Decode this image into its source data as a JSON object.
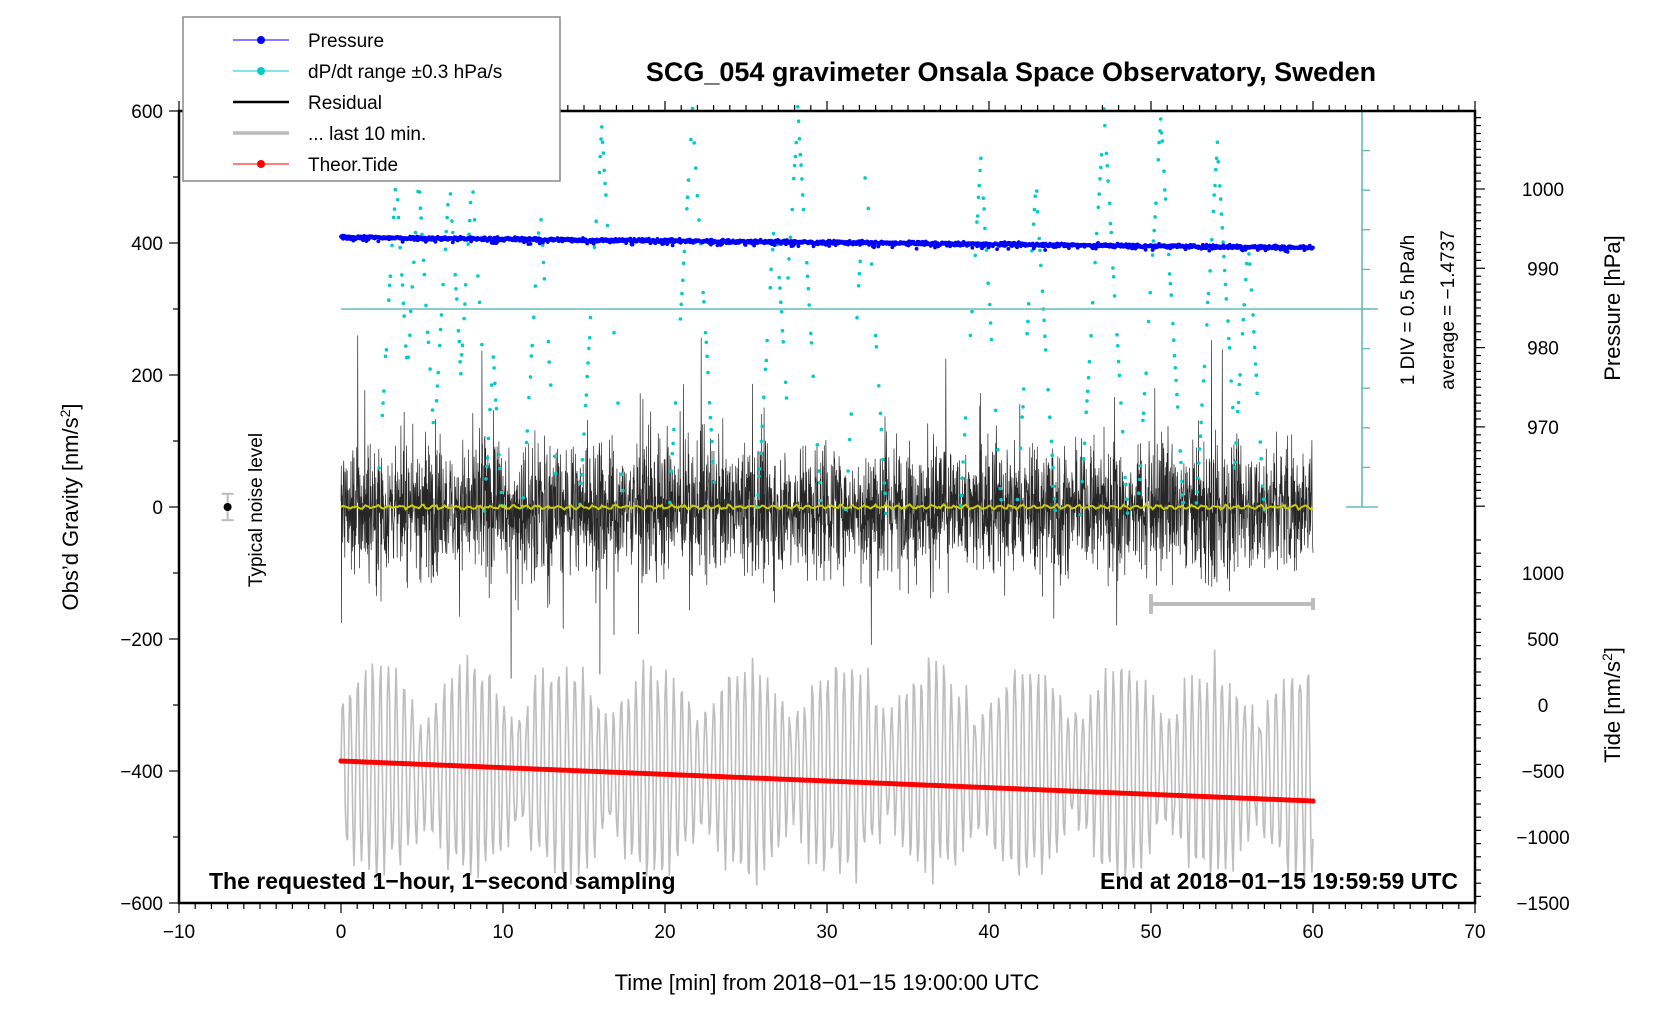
{
  "chart_data": {
    "type": "line",
    "title": "SCG_054 gravimeter Onsala Space Observatory, Sweden",
    "xlabel": "Time [min] from 2018−01−15 19:00:00 UTC",
    "ylabel_left": "Obs’d Gravity [nm/s²]",
    "ylabel_left_main": "Obs’d Gravity [nm/s",
    "ylabel_right_pressure": "Pressure [hPa]",
    "ylabel_right_tide_main": "Tide [nm/s",
    "ylabel_right_tide": "Tide [nm/s²]",
    "xlim": [
      -10,
      70
    ],
    "ylim_left": [
      -600,
      600
    ],
    "pressure_range": [
      960,
      1010
    ],
    "tide_range": [
      -1500,
      1000
    ],
    "x_ticks": [
      -10,
      0,
      10,
      20,
      30,
      40,
      50,
      60,
      70
    ],
    "x_tick_labels": [
      "−10",
      "0",
      "10",
      "20",
      "30",
      "40",
      "50",
      "60",
      "70"
    ],
    "y_left_ticks": [
      600,
      400,
      200,
      0,
      -200,
      -400,
      -600
    ],
    "y_left_tick_labels": [
      "600",
      "400",
      "200",
      "0",
      "−200",
      "−400",
      "−600"
    ],
    "pressure_ticks": [
      1000,
      990,
      980,
      970
    ],
    "pressure_tick_labels": [
      "1000",
      "990",
      "980",
      "970"
    ],
    "tide_ticks": [
      1000,
      500,
      0,
      -500,
      -1000,
      -1500
    ],
    "tide_tick_labels": [
      "1000",
      "500",
      "0",
      "−500",
      "−1000",
      "−1500"
    ],
    "grid": false,
    "legend_position": "top-left",
    "legend": [
      {
        "label": "Pressure",
        "color": "#0000ff",
        "style": "line-dot"
      },
      {
        "label": "dP/dt range ±0.3 hPa/s",
        "color": "#00cccc",
        "style": "line-dot"
      },
      {
        "label": "Residual",
        "color": "#000000",
        "style": "line"
      },
      {
        "label": "... last 10 min.",
        "color": "#bbbbbb",
        "style": "thick-line"
      },
      {
        "label": "Theor.Tide",
        "color": "#ff0000",
        "style": "line-dot"
      }
    ],
    "series": [
      {
        "name": "Pressure",
        "unit": "hPa",
        "x_range": [
          0,
          60
        ],
        "start": 993.9,
        "end": 992.6
      },
      {
        "name": "Residual",
        "unit": "nm/s²",
        "x_range": [
          0,
          60
        ],
        "mean": 0,
        "approx_range": [
          -260,
          260
        ]
      },
      {
        "name": "Residual (smoothed)",
        "unit": "nm/s²",
        "x_range": [
          0,
          60
        ],
        "value": 0,
        "color": "#cccc00"
      },
      {
        "name": "Theor.Tide",
        "unit": "nm/s² (tide axis)",
        "x_range": [
          0,
          60
        ],
        "start": -424,
        "end": -727,
        "start_left_axis": -385,
        "end_left_axis": -445
      },
      {
        "name": "... last 10 min.",
        "x_range": [
          0,
          60
        ],
        "left_axis_center": -400,
        "approx_range": [
          -560,
          -180
        ]
      },
      {
        "name": "dP/dt",
        "x_range": [
          0,
          60
        ],
        "peak_times_min": [
          3.4,
          4.8,
          6.7,
          8.1,
          9.4,
          12.3,
          16.1,
          21.7,
          26.8,
          28.2,
          32.4,
          39.5,
          42.9,
          47.1,
          50.6,
          54.1,
          56.0
        ]
      }
    ],
    "last_10_min_bracket": [
      50,
      60
    ],
    "dpdt_scale": {
      "div_label": "1 DIV = 0.5 hPa/h",
      "average_label": "average = −1.4737",
      "average": -1.4737,
      "div": 0.5,
      "divisions": 10
    },
    "noise_marker": {
      "label": "Typical noise level",
      "x": -7,
      "value": 0,
      "error": 20
    },
    "annotations": {
      "bottom_left": "The requested 1−hour, 1−second sampling",
      "bottom_right": "End at 2018−01−15 19:59:59 UTC"
    }
  }
}
